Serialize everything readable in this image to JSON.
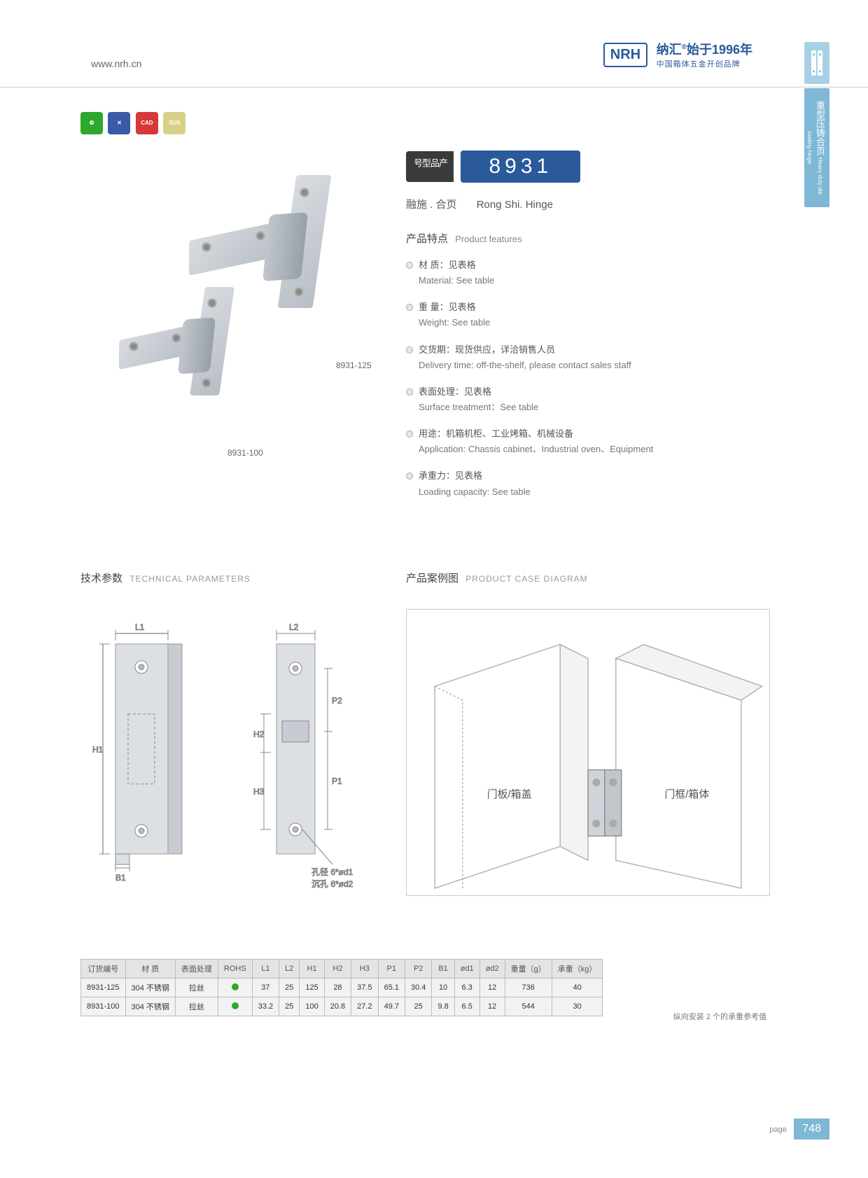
{
  "header": {
    "website": "www.nrh.cn",
    "logo_text": "NRH",
    "brand_cn": "纳汇",
    "brand_year": "始于1996年",
    "brand_sub": "中国箱体五金开创品牌"
  },
  "side_tabs": {
    "tab1_icon": "hinge",
    "tab2_cn": "重型压铸合页",
    "tab2_en": "Heavy duty die casting hinge"
  },
  "icon_badges": [
    {
      "color": "#2da82d",
      "label": "eco"
    },
    {
      "color": "#3a5aa8",
      "label": "X"
    },
    {
      "color": "#d83838",
      "label": "CAD"
    },
    {
      "color": "#d8d088",
      "label": "SUS"
    }
  ],
  "product_images": {
    "large_label": "8931-125",
    "small_label": "8931-100"
  },
  "product": {
    "model_label": "产品型号",
    "model_number": "8931",
    "subtitle_cn": "融施 . 合页",
    "subtitle_en": "Rong Shi. Hinge",
    "features_title_cn": "产品特点",
    "features_title_en": "Product features",
    "features": [
      {
        "cn": "材 质：见表格",
        "en": "Material: See table"
      },
      {
        "cn": "重 量：见表格",
        "en": "Weight: See table"
      },
      {
        "cn": "交货期：现货供应，详洽销售人员",
        "en": "Delivery time: off-the-shelf, please contact sales staff"
      },
      {
        "cn": "表面处理：见表格",
        "en": "Surface treatment：See table"
      },
      {
        "cn": "用途：机箱机柜、工业烤箱、机械设备",
        "en": "Application: Chassis cabinet、Industrial oven、Equipment"
      },
      {
        "cn": "承重力：见表格",
        "en": "Loading capacity: See table"
      }
    ]
  },
  "tech_params": {
    "title_cn": "技术参数",
    "title_en": "TECHNICAL PARAMETERS",
    "dim_labels": {
      "L1": "L1",
      "L2": "L2",
      "H1": "H1",
      "H2": "H2",
      "H3": "H3",
      "P1": "P1",
      "P2": "P2",
      "B1": "B1",
      "hole_note1": "孔径 6*ød1",
      "hole_note2": "沉孔 6*ød2"
    }
  },
  "case_diagram": {
    "title_cn": "产品案例图",
    "title_en": "PRODUCT CASE DIAGRAM",
    "door_label": "门板/箱盖",
    "frame_label": "门框/箱体"
  },
  "table": {
    "columns": [
      "订货编号",
      "材 质",
      "表面处理",
      "ROHS",
      "L1",
      "L2",
      "H1",
      "H2",
      "H3",
      "P1",
      "P2",
      "B1",
      "ød1",
      "ød2",
      "重量（g）",
      "承重（kg）"
    ],
    "rows": [
      [
        "8931-125",
        "304 不锈钢",
        "拉丝",
        "dot",
        "37",
        "25",
        "125",
        "28",
        "37.5",
        "65.1",
        "30.4",
        "10",
        "6.3",
        "12",
        "736",
        "40"
      ],
      [
        "8931-100",
        "304 不锈钢",
        "拉丝",
        "dot",
        "33.2",
        "25",
        "100",
        "20.8",
        "27.2",
        "49.7",
        "25",
        "9.8",
        "6.5",
        "12",
        "544",
        "30"
      ]
    ],
    "note": "纵向安装 2 个的承重参考值"
  },
  "footer": {
    "page_label": "page",
    "page_number": "748"
  },
  "colors": {
    "brand_blue": "#2a5a9a",
    "side_tab_bg": "#7eb8d6",
    "rohs_green": "#2ba82b",
    "table_header": "#e4e4e4",
    "table_cell": "#f2f2f2",
    "border_gray": "#bbb"
  }
}
